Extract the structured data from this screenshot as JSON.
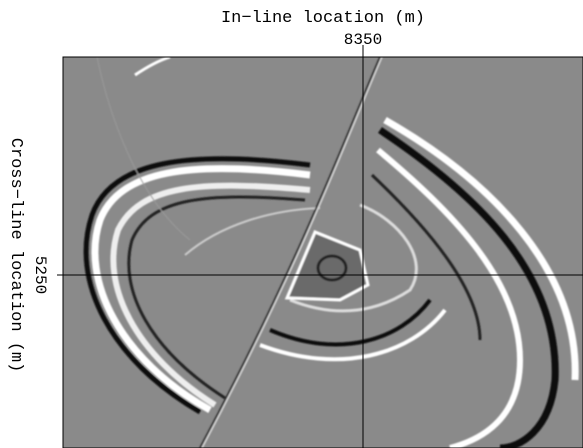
{
  "figure": {
    "x_axis_label": "In−line location (m)",
    "x_tick": "8350",
    "y_axis_label": "Cross−line location (m)",
    "y_tick": "5250"
  }
}
